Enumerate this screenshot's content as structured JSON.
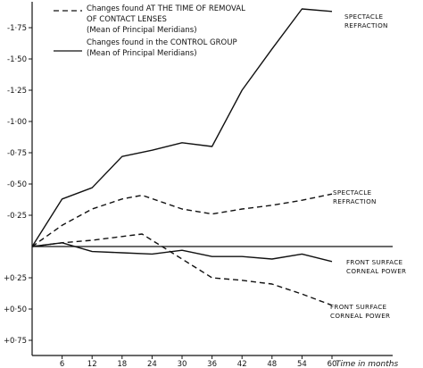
{
  "chart_data": {
    "type": "line",
    "title": "",
    "xlabel": "Time in months",
    "ylabel": "",
    "xlim": [
      0,
      64
    ],
    "ylim": [
      0.85,
      -2.0
    ],
    "y_axis_inverted": true,
    "x_ticks": [
      6,
      12,
      18,
      24,
      30,
      36,
      42,
      48,
      54,
      60
    ],
    "x_tick_labels": [
      "6",
      "12",
      "18",
      "24",
      "30",
      "36",
      "42",
      "48",
      "54",
      "60"
    ],
    "y_ticks": [
      -1.75,
      -1.5,
      -1.25,
      -1.0,
      -0.75,
      -0.5,
      -0.25,
      0.25,
      0.5,
      0.75
    ],
    "y_tick_labels": [
      "-1·75",
      "-1·50",
      "-1·25",
      "-1·00",
      "-0·75",
      "-0·50",
      "-0·25",
      "+0·25",
      "+0·50",
      "+0·75"
    ],
    "grid": false,
    "legend_position": "top-left",
    "legend": [
      {
        "style": "dashed",
        "lines": [
          "Changes found AT THE TIME OF REMOVAL",
          "OF CONTACT LENSES",
          "(Mean of Principal Meridians)"
        ]
      },
      {
        "style": "solid",
        "lines": [
          "Changes found in the CONTROL GROUP",
          "(Mean of Principal Meridians)"
        ]
      }
    ],
    "series": [
      {
        "label": [
          "SPECTACLE",
          "REFRACTION"
        ],
        "style": "solid",
        "x": [
          0,
          6,
          12,
          18,
          24,
          30,
          36,
          42,
          48,
          54,
          60
        ],
        "y": [
          0,
          -0.38,
          -0.47,
          -0.72,
          -0.77,
          -0.83,
          -0.8,
          -1.25,
          -1.58,
          -1.9,
          -1.88
        ]
      },
      {
        "label": [
          "SPECTACLE",
          "REFRACTION"
        ],
        "style": "dashed",
        "x": [
          0,
          6,
          12,
          18,
          22,
          30,
          36,
          42,
          48,
          54,
          60
        ],
        "y": [
          0,
          -0.17,
          -0.3,
          -0.38,
          -0.41,
          -0.3,
          -0.26,
          -0.3,
          -0.33,
          -0.37,
          -0.42
        ]
      },
      {
        "label": [
          "FRONT SURFACE",
          "CORNEAL POWER"
        ],
        "style": "solid",
        "x": [
          0,
          6,
          12,
          18,
          24,
          30,
          36,
          42,
          48,
          54,
          60
        ],
        "y": [
          0,
          -0.03,
          0.04,
          0.05,
          0.06,
          0.03,
          0.08,
          0.08,
          0.1,
          0.06,
          0.12
        ]
      },
      {
        "label": [
          "FRONT SURFACE",
          "CORNEAL POWER"
        ],
        "style": "dashed",
        "x": [
          0,
          6,
          12,
          18,
          22,
          30,
          36,
          42,
          48,
          54,
          60
        ],
        "y": [
          0,
          -0.03,
          -0.05,
          -0.08,
          -0.1,
          0.1,
          0.25,
          0.27,
          0.3,
          0.38,
          0.47
        ]
      }
    ]
  }
}
